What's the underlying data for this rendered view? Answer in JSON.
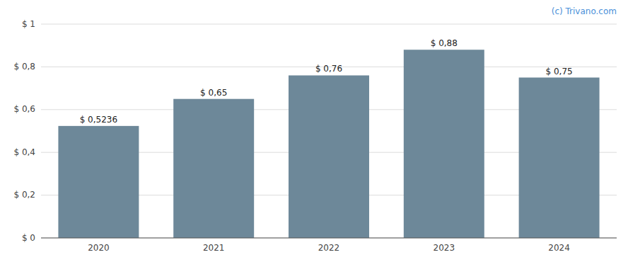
{
  "chart_data": {
    "type": "bar",
    "categories": [
      "2020",
      "2021",
      "2022",
      "2023",
      "2024"
    ],
    "values": [
      0.5236,
      0.65,
      0.76,
      0.88,
      0.75
    ],
    "value_labels": [
      "$ 0,5236",
      "$ 0,65",
      "$ 0,76",
      "$ 0,88",
      "$ 0,75"
    ],
    "data_labels": true,
    "color": "#6d8899",
    "ylim": [
      0,
      1
    ],
    "yticks": [
      {
        "value": 0,
        "label": "$ 0"
      },
      {
        "value": 0.2,
        "label": "$ 0,2"
      },
      {
        "value": 0.4,
        "label": "$ 0,4"
      },
      {
        "value": 0.6,
        "label": "$ 0,6"
      },
      {
        "value": 0.8,
        "label": "$ 0,8"
      },
      {
        "value": 1,
        "label": "$ 1"
      }
    ],
    "grid": true,
    "annotations": [
      "(c) Trivano.com"
    ]
  }
}
